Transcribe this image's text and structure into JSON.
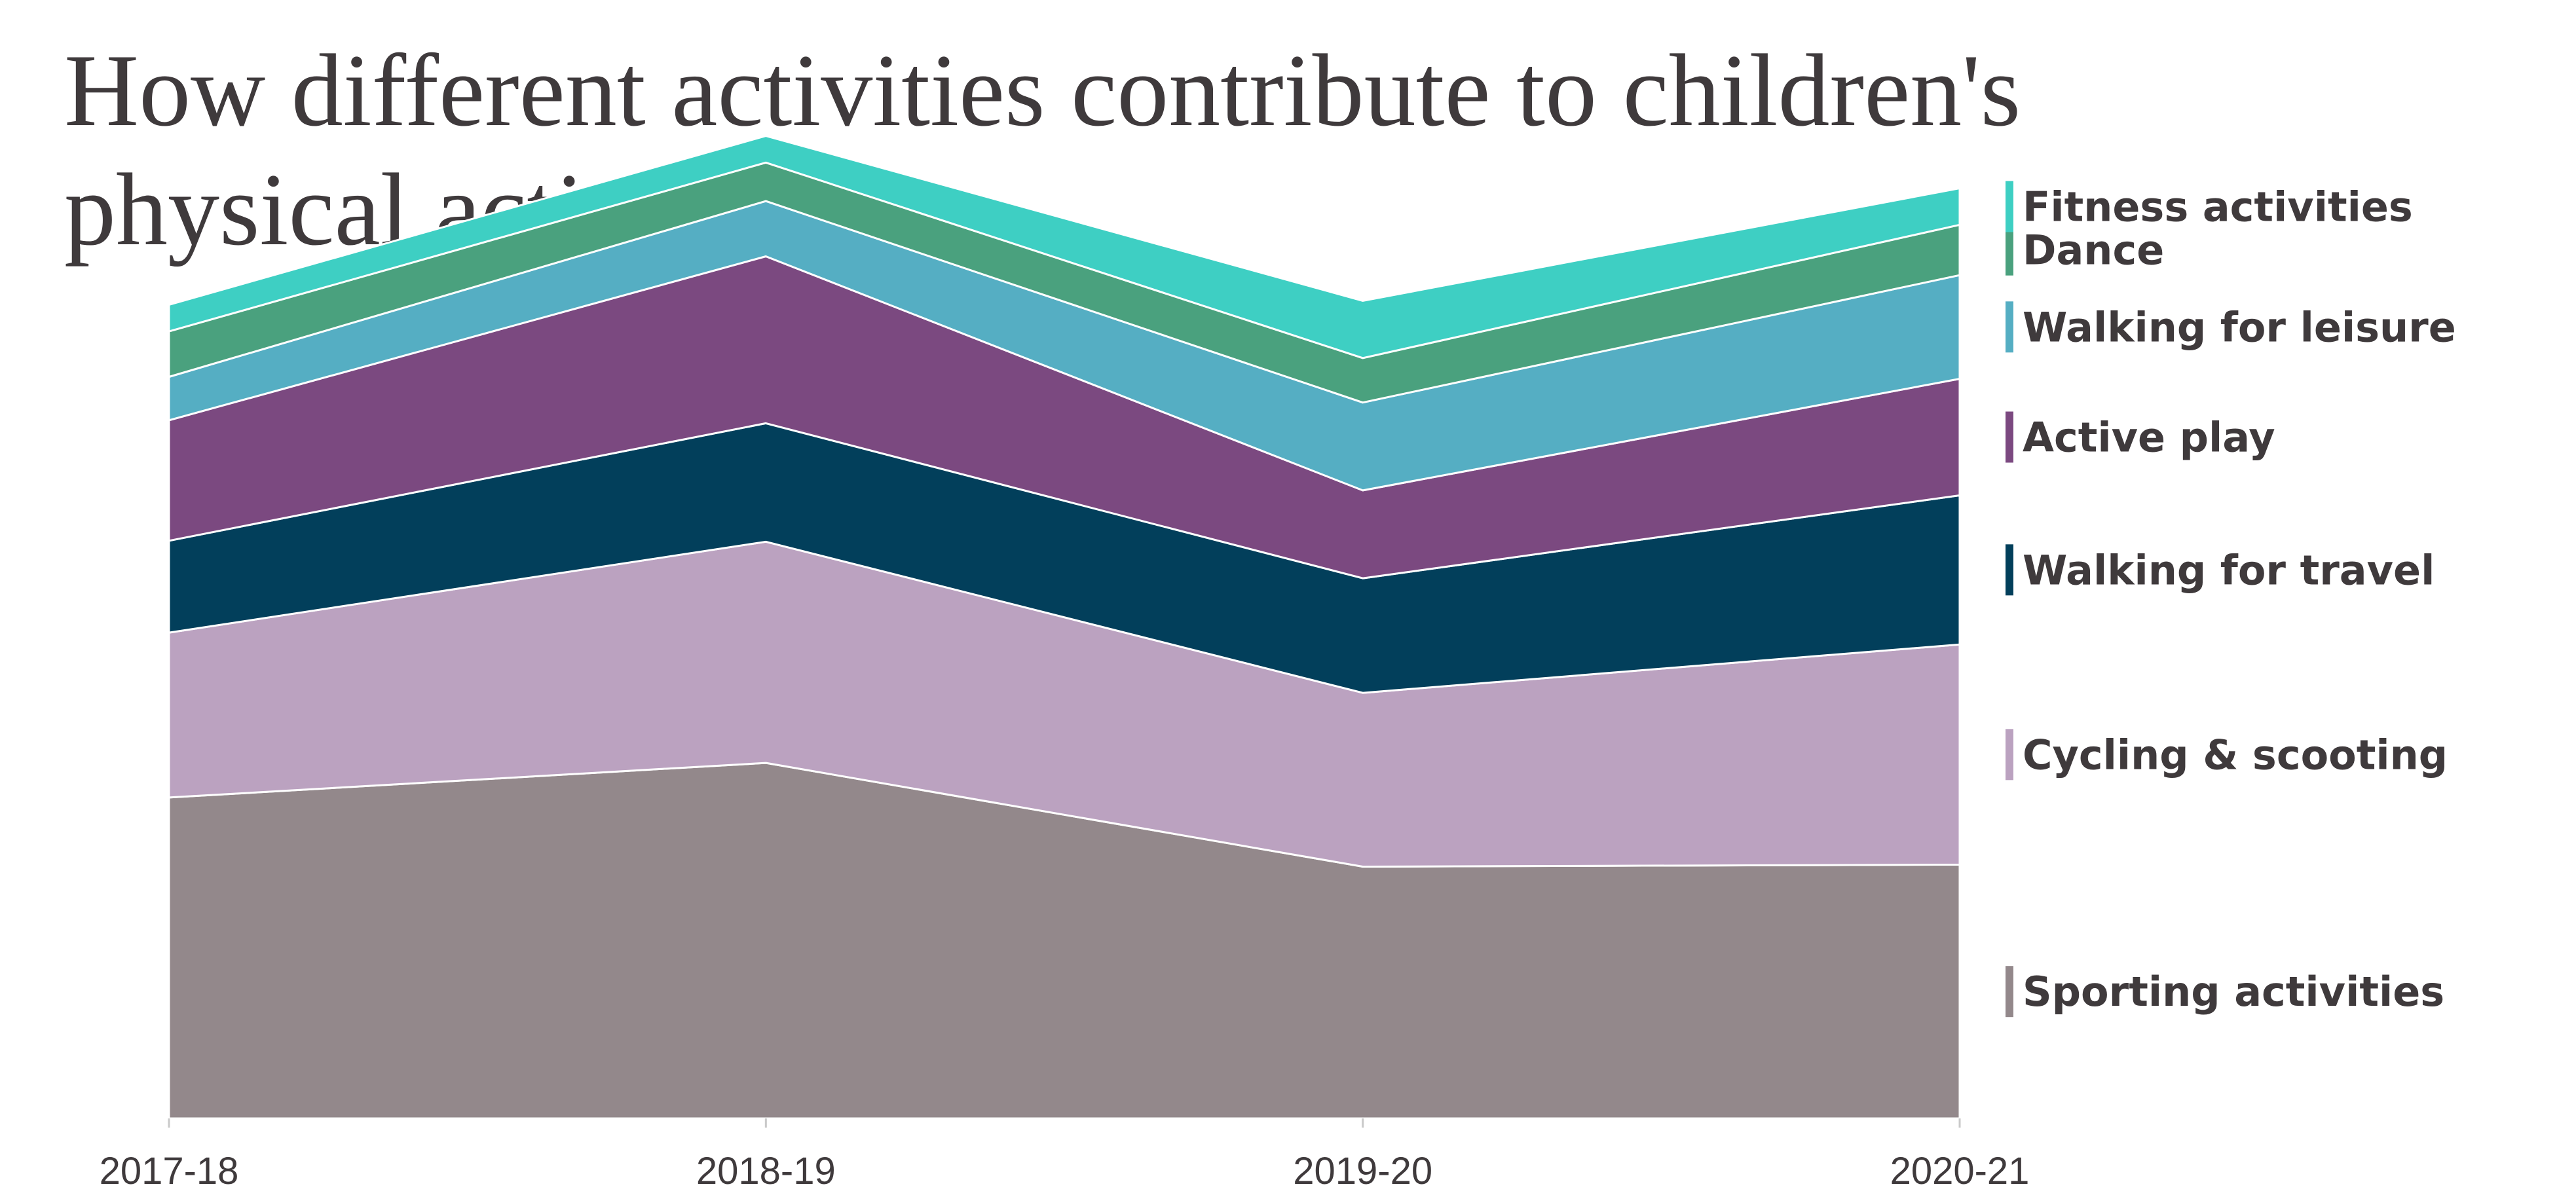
{
  "chart_data": {
    "type": "area",
    "stacked": true,
    "title": "How different activities contribute to children's physical activity",
    "xlabel": "",
    "ylabel": "",
    "categories": [
      "2017-18",
      "2018-19",
      "2019-20",
      "2020-21"
    ],
    "ylim": [
      0,
      100
    ],
    "grid": false,
    "legend_position": "right",
    "series": [
      {
        "name": "Sporting activities",
        "color": "#93888b",
        "values": [
          32.5,
          36.0,
          25.5,
          25.7
        ]
      },
      {
        "name": "Cycling & scooting",
        "color": "#bba2c0",
        "values": [
          16.7,
          22.4,
          17.6,
          22.3
        ]
      },
      {
        "name": "Walking for travel",
        "color": "#023f5b",
        "values": [
          9.3,
          12.0,
          11.6,
          15.1
        ]
      },
      {
        "name": "Active play",
        "color": "#7b4980",
        "values": [
          12.2,
          16.9,
          8.9,
          11.8
        ]
      },
      {
        "name": "Walking for leisure",
        "color": "#55aec3",
        "values": [
          4.4,
          5.6,
          8.9,
          10.5
        ]
      },
      {
        "name": "Dance",
        "color": "#4aa17e",
        "values": [
          4.6,
          3.9,
          4.5,
          5.1
        ]
      },
      {
        "name": "Fitness activities",
        "color": "#3ecfc3",
        "values": [
          2.7,
          2.7,
          5.8,
          3.7
        ]
      }
    ]
  }
}
